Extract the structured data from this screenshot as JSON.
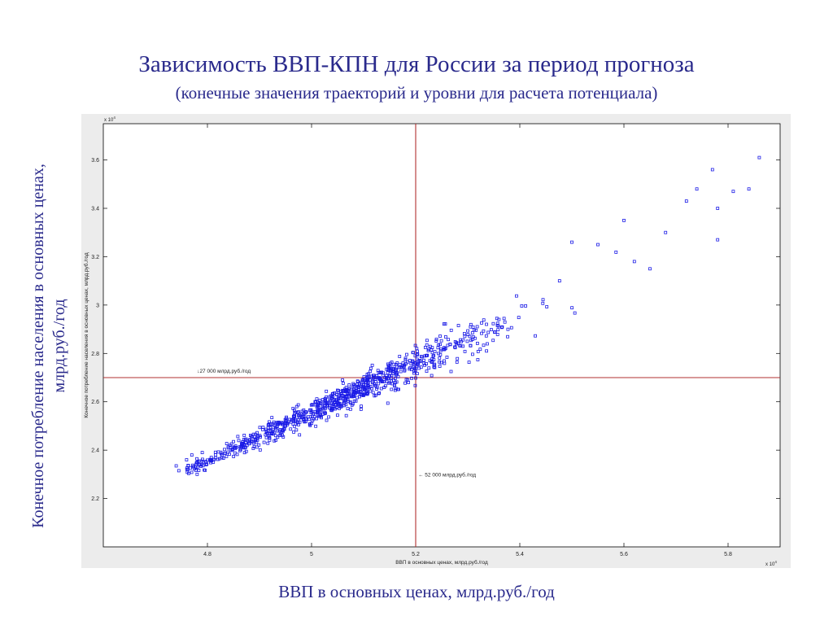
{
  "slide": {
    "title": "Зависимость ВВП-КПН для России за период прогноза",
    "subtitle": "(конечные значения траекторий и уровни для расчета потенциала)",
    "ylabel_line1": "Конечное потребление населения в основных ценах,",
    "ylabel_line2": "млрд.руб./год",
    "xlabel": "ВВП в основных ценах, млрд.руб./год"
  },
  "colors": {
    "title": "#2a2a8c",
    "points": "#1a1ae6",
    "reference_lines": "#b03030",
    "figure_background": "#ececec",
    "axes_background": "#ffffff"
  },
  "chart_data": {
    "type": "scatter",
    "xlabel": "ВВП в основных ценах, млрд.руб./год",
    "ylabel": "Конечное потребление населения в основных ценах, млрд.руб./год",
    "x_exponent_label": "x 10",
    "x_exponent": "4",
    "y_exponent_label": "x 10",
    "y_exponent": "4",
    "xlim": [
      4.6,
      5.9
    ],
    "ylim": [
      2.0,
      3.75
    ],
    "x_ticks": [
      "4.8",
      "5",
      "5.2",
      "5.4",
      "5.6",
      "5.8"
    ],
    "y_ticks": [
      "2.2",
      "2.4",
      "2.6",
      "2.8",
      "3",
      "3.2",
      "3.4",
      "3.6"
    ],
    "grid": false,
    "marker": "square",
    "reference_lines": [
      {
        "orientation": "vertical",
        "value": 5.2,
        "label": "← 52 000 млрд.руб./год"
      },
      {
        "orientation": "horizontal",
        "value": 2.7,
        "label": "↓27 000 млрд.руб./год"
      }
    ],
    "points_count": 900,
    "explicit_points": [
      [
        4.74,
        2.335
      ],
      [
        4.745,
        2.315
      ],
      [
        4.76,
        2.36
      ],
      [
        4.77,
        2.38
      ],
      [
        4.78,
        2.35
      ],
      [
        4.79,
        2.39
      ],
      [
        5.86,
        3.61
      ],
      [
        5.77,
        3.56
      ],
      [
        5.78,
        3.27
      ],
      [
        5.84,
        3.48
      ],
      [
        5.81,
        3.47
      ],
      [
        5.74,
        3.48
      ],
      [
        5.72,
        3.43
      ],
      [
        5.6,
        3.35
      ],
      [
        5.5,
        3.26
      ],
      [
        5.68,
        3.3
      ],
      [
        5.78,
        3.4
      ],
      [
        5.65,
        3.15
      ],
      [
        5.55,
        3.25
      ],
      [
        5.62,
        3.18
      ]
    ],
    "trend": {
      "slope": 1.005,
      "intercept": -2.47
    }
  }
}
